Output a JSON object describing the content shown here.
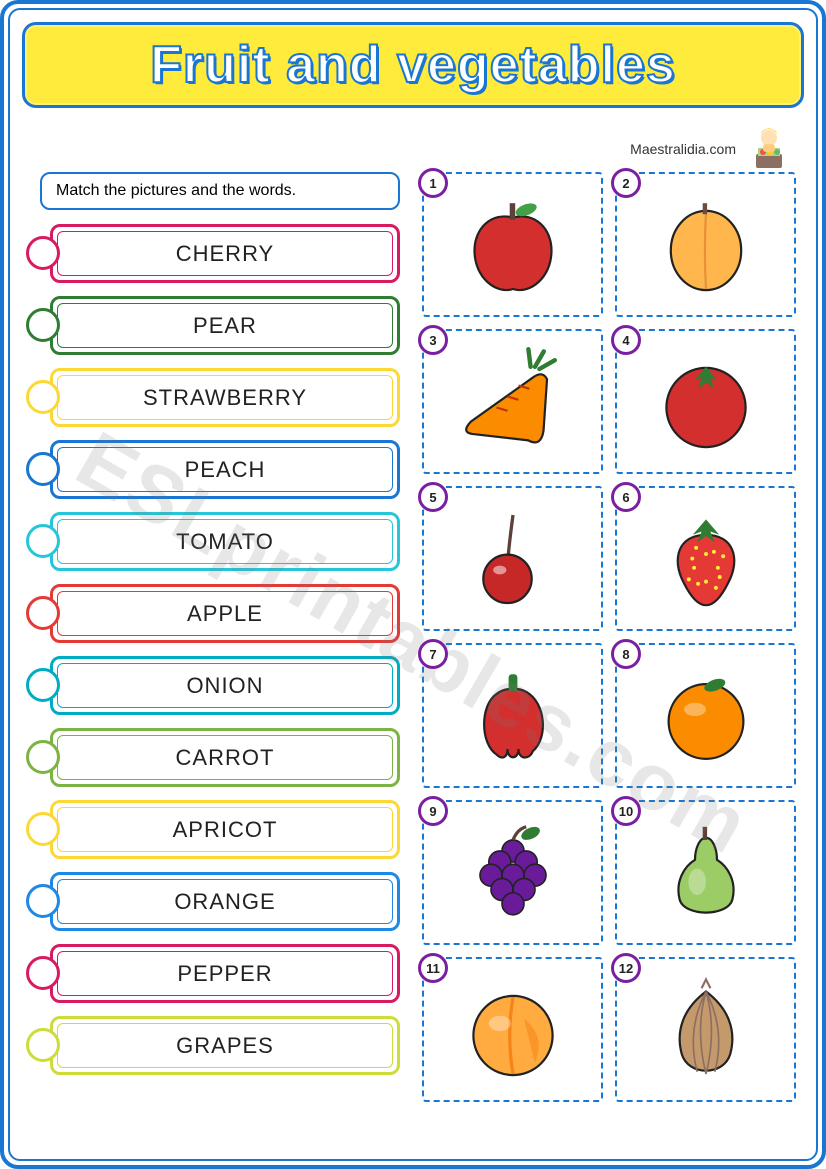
{
  "title": "Fruit and vegetables",
  "attribution": "Maestralidia.com",
  "instructions": "Match the pictures and the words.",
  "watermark": "ESLprintables.com",
  "colors": {
    "frame": "#1976d2",
    "title_bg": "#ffeb3b",
    "badge_border": "#7b1fa2",
    "dashed": "#1976d2"
  },
  "words": [
    {
      "label": "CHERRY",
      "color": "#d81b60"
    },
    {
      "label": "PEAR",
      "color": "#2e7d32"
    },
    {
      "label": "STRAWBERRY",
      "color": "#fdd835"
    },
    {
      "label": "PEACH",
      "color": "#1976d2"
    },
    {
      "label": "TOMATO",
      "color": "#26c6da"
    },
    {
      "label": "APPLE",
      "color": "#e53935"
    },
    {
      "label": "ONION",
      "color": "#00acc1"
    },
    {
      "label": "CARROT",
      "color": "#7cb342"
    },
    {
      "label": "APRICOT",
      "color": "#fdd835"
    },
    {
      "label": "ORANGE",
      "color": "#1e88e5"
    },
    {
      "label": "PEPPER",
      "color": "#d81b60"
    },
    {
      "label": "GRAPES",
      "color": "#cddc39"
    }
  ],
  "pictures": [
    {
      "n": 1,
      "kind": "apple",
      "fill": "#d32f2f",
      "stem": "#5d4037",
      "leaf": "#43a047"
    },
    {
      "n": 2,
      "kind": "apricot",
      "fill": "#ffb74d",
      "stem": "#6d4c41"
    },
    {
      "n": 3,
      "kind": "carrot",
      "fill": "#fb8c00",
      "leaf": "#2e7d32"
    },
    {
      "n": 4,
      "kind": "tomato",
      "fill": "#d32f2f",
      "leaf": "#2e7d32"
    },
    {
      "n": 5,
      "kind": "cherry",
      "fill": "#c62828",
      "stem": "#5d4037"
    },
    {
      "n": 6,
      "kind": "strawberry",
      "fill": "#e53935",
      "leaf": "#2e7d32"
    },
    {
      "n": 7,
      "kind": "pepper",
      "fill": "#d32f2f",
      "stem": "#2e7d32"
    },
    {
      "n": 8,
      "kind": "orange",
      "fill": "#fb8c00",
      "leaf": "#2e7d32"
    },
    {
      "n": 9,
      "kind": "grapes",
      "fill": "#6a1b9a",
      "leaf": "#2e7d32"
    },
    {
      "n": 10,
      "kind": "pear",
      "fill": "#9ccc65",
      "stem": "#5d4037"
    },
    {
      "n": 11,
      "kind": "peach",
      "fill": "#ffab40",
      "blush": "#ef6c00"
    },
    {
      "n": 12,
      "kind": "onion",
      "fill": "#c49a6c",
      "lines": "#8d6e63"
    }
  ]
}
